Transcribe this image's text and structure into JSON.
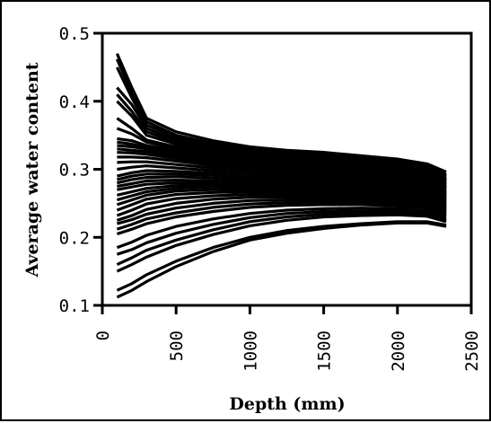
{
  "chart_data": {
    "type": "line",
    "title": "",
    "xlabel": "Depth (mm)",
    "ylabel": "Average water content",
    "xlim": [
      0,
      2500
    ],
    "ylim": [
      0.1,
      0.5
    ],
    "x_ticks": [
      "0",
      "500",
      "1000",
      "1500",
      "2000",
      "2500"
    ],
    "y_ticks": [
      "0.1",
      "0.2",
      "0.3",
      "0.4",
      "0.5"
    ],
    "grid": false,
    "legend": "none",
    "x": [
      100,
      200,
      300,
      500,
      750,
      1000,
      1250,
      1500,
      1750,
      2000,
      2200,
      2330
    ],
    "series": [
      {
        "values": [
          0.47,
          0.42,
          0.375,
          0.355,
          0.342,
          0.333,
          0.328,
          0.325,
          0.32,
          0.315,
          0.308,
          0.296
        ]
      },
      {
        "values": [
          0.462,
          0.412,
          0.37,
          0.35,
          0.338,
          0.33,
          0.325,
          0.322,
          0.318,
          0.312,
          0.305,
          0.292
        ]
      },
      {
        "values": [
          0.45,
          0.405,
          0.365,
          0.347,
          0.335,
          0.328,
          0.323,
          0.32,
          0.316,
          0.31,
          0.302,
          0.29
        ]
      },
      {
        "values": [
          0.42,
          0.395,
          0.36,
          0.343,
          0.332,
          0.325,
          0.32,
          0.318,
          0.314,
          0.308,
          0.3,
          0.287
        ]
      },
      {
        "values": [
          0.41,
          0.385,
          0.355,
          0.34,
          0.33,
          0.323,
          0.318,
          0.316,
          0.312,
          0.306,
          0.298,
          0.285
        ]
      },
      {
        "values": [
          0.4,
          0.378,
          0.35,
          0.337,
          0.327,
          0.32,
          0.316,
          0.314,
          0.31,
          0.304,
          0.296,
          0.283
        ]
      },
      {
        "values": [
          0.375,
          0.36,
          0.343,
          0.333,
          0.325,
          0.318,
          0.314,
          0.312,
          0.308,
          0.302,
          0.294,
          0.281
        ]
      },
      {
        "values": [
          0.36,
          0.352,
          0.34,
          0.33,
          0.322,
          0.316,
          0.312,
          0.31,
          0.306,
          0.3,
          0.292,
          0.279
        ]
      },
      {
        "values": [
          0.345,
          0.342,
          0.335,
          0.327,
          0.32,
          0.314,
          0.31,
          0.308,
          0.304,
          0.298,
          0.29,
          0.277
        ]
      },
      {
        "values": [
          0.34,
          0.337,
          0.332,
          0.325,
          0.318,
          0.312,
          0.308,
          0.306,
          0.302,
          0.296,
          0.288,
          0.275
        ]
      },
      {
        "values": [
          0.335,
          0.333,
          0.33,
          0.322,
          0.315,
          0.309,
          0.305,
          0.303,
          0.3,
          0.294,
          0.286,
          0.273
        ]
      },
      {
        "values": [
          0.33,
          0.328,
          0.326,
          0.319,
          0.312,
          0.306,
          0.302,
          0.3,
          0.297,
          0.292,
          0.284,
          0.271
        ]
      },
      {
        "values": [
          0.325,
          0.324,
          0.322,
          0.316,
          0.309,
          0.303,
          0.299,
          0.297,
          0.294,
          0.289,
          0.281,
          0.268
        ]
      },
      {
        "values": [
          0.318,
          0.318,
          0.317,
          0.312,
          0.306,
          0.3,
          0.296,
          0.294,
          0.291,
          0.286,
          0.279,
          0.266
        ]
      },
      {
        "values": [
          0.31,
          0.311,
          0.311,
          0.307,
          0.302,
          0.297,
          0.293,
          0.291,
          0.288,
          0.283,
          0.276,
          0.264
        ]
      },
      {
        "values": [
          0.3,
          0.303,
          0.305,
          0.302,
          0.298,
          0.294,
          0.29,
          0.288,
          0.285,
          0.28,
          0.274,
          0.262
        ]
      },
      {
        "values": [
          0.29,
          0.295,
          0.298,
          0.297,
          0.294,
          0.29,
          0.287,
          0.285,
          0.282,
          0.278,
          0.272,
          0.26
        ]
      },
      {
        "values": [
          0.285,
          0.29,
          0.293,
          0.293,
          0.291,
          0.287,
          0.284,
          0.282,
          0.28,
          0.275,
          0.269,
          0.258
        ]
      },
      {
        "values": [
          0.28,
          0.285,
          0.288,
          0.289,
          0.287,
          0.284,
          0.281,
          0.279,
          0.277,
          0.273,
          0.267,
          0.256
        ]
      },
      {
        "values": [
          0.275,
          0.279,
          0.283,
          0.284,
          0.283,
          0.281,
          0.278,
          0.276,
          0.274,
          0.27,
          0.265,
          0.254
        ]
      },
      {
        "values": [
          0.27,
          0.274,
          0.278,
          0.28,
          0.28,
          0.278,
          0.276,
          0.274,
          0.272,
          0.268,
          0.263,
          0.252
        ]
      },
      {
        "values": [
          0.262,
          0.267,
          0.272,
          0.276,
          0.277,
          0.276,
          0.274,
          0.272,
          0.27,
          0.266,
          0.261,
          0.25
        ]
      },
      {
        "values": [
          0.255,
          0.261,
          0.267,
          0.272,
          0.274,
          0.273,
          0.271,
          0.27,
          0.268,
          0.264,
          0.259,
          0.248
        ]
      },
      {
        "values": [
          0.248,
          0.255,
          0.262,
          0.268,
          0.27,
          0.27,
          0.269,
          0.268,
          0.266,
          0.262,
          0.257,
          0.246
        ]
      },
      {
        "values": [
          0.24,
          0.248,
          0.256,
          0.263,
          0.266,
          0.267,
          0.266,
          0.265,
          0.263,
          0.259,
          0.254,
          0.244
        ]
      },
      {
        "values": [
          0.232,
          0.24,
          0.249,
          0.257,
          0.261,
          0.263,
          0.263,
          0.262,
          0.26,
          0.257,
          0.252,
          0.242
        ]
      },
      {
        "values": [
          0.225,
          0.232,
          0.241,
          0.25,
          0.256,
          0.259,
          0.259,
          0.259,
          0.257,
          0.254,
          0.25,
          0.24
        ]
      },
      {
        "values": [
          0.22,
          0.226,
          0.234,
          0.243,
          0.25,
          0.254,
          0.255,
          0.255,
          0.254,
          0.251,
          0.247,
          0.238
        ]
      },
      {
        "values": [
          0.212,
          0.219,
          0.227,
          0.236,
          0.244,
          0.249,
          0.251,
          0.252,
          0.251,
          0.249,
          0.245,
          0.236
        ]
      },
      {
        "values": [
          0.205,
          0.212,
          0.22,
          0.23,
          0.238,
          0.244,
          0.247,
          0.248,
          0.248,
          0.246,
          0.243,
          0.234
        ]
      },
      {
        "values": [
          0.185,
          0.193,
          0.203,
          0.216,
          0.227,
          0.235,
          0.24,
          0.242,
          0.243,
          0.242,
          0.239,
          0.231
        ]
      },
      {
        "values": [
          0.175,
          0.182,
          0.192,
          0.206,
          0.219,
          0.229,
          0.235,
          0.238,
          0.239,
          0.239,
          0.236,
          0.228
        ]
      },
      {
        "values": [
          0.16,
          0.17,
          0.181,
          0.196,
          0.211,
          0.223,
          0.23,
          0.234,
          0.236,
          0.236,
          0.233,
          0.225
        ]
      },
      {
        "values": [
          0.15,
          0.16,
          0.171,
          0.188,
          0.204,
          0.217,
          0.225,
          0.23,
          0.232,
          0.233,
          0.231,
          0.223
        ]
      },
      {
        "values": [
          0.122,
          0.132,
          0.145,
          0.165,
          0.185,
          0.2,
          0.21,
          0.216,
          0.22,
          0.223,
          0.223,
          0.218
        ]
      },
      {
        "values": [
          0.112,
          0.122,
          0.135,
          0.157,
          0.179,
          0.196,
          0.206,
          0.213,
          0.218,
          0.221,
          0.221,
          0.216
        ]
      }
    ]
  }
}
